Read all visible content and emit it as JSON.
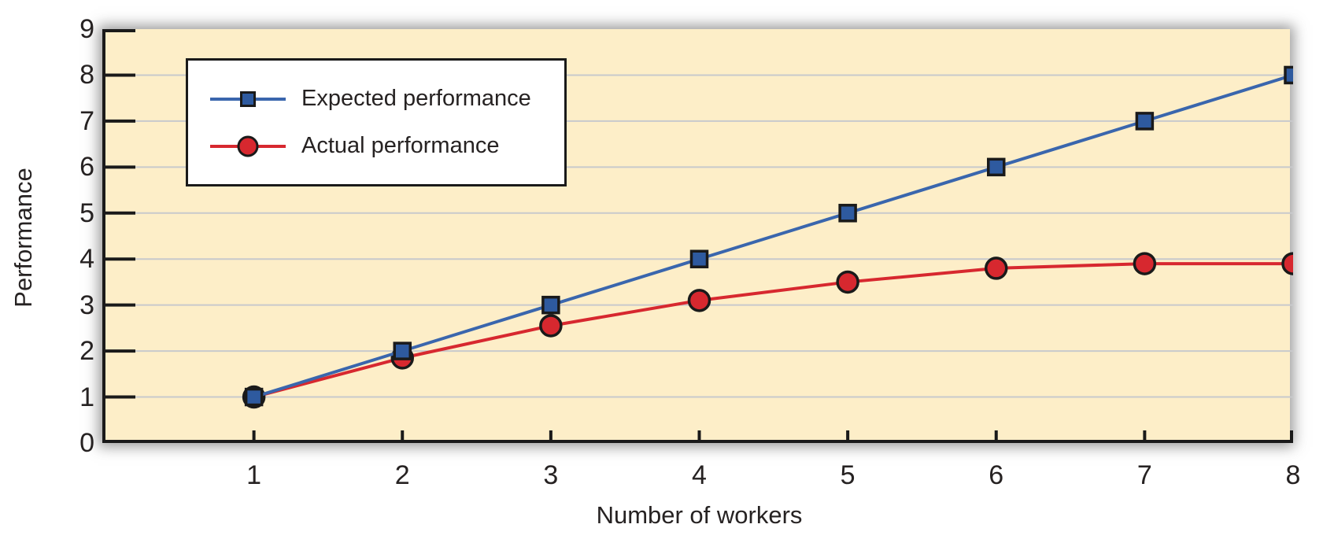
{
  "chart_data": {
    "type": "line",
    "title": "",
    "xlabel": "Number of workers",
    "ylabel": "Performance",
    "x": [
      1,
      2,
      3,
      4,
      5,
      6,
      7,
      8
    ],
    "xlim": [
      0,
      8
    ],
    "ylim": [
      0,
      9
    ],
    "xticks": [
      1,
      2,
      3,
      4,
      5,
      6,
      7,
      8
    ],
    "yticks": [
      0,
      1,
      2,
      3,
      4,
      5,
      6,
      7,
      8,
      9
    ],
    "grid": "horizontal-only",
    "legend_position": "top-left",
    "series": [
      {
        "name": "Expected performance",
        "line_color": "#3a66ad",
        "marker": "square",
        "marker_fill": "#2e5a9f",
        "marker_edge": "#1a1a1a",
        "values": [
          1,
          2,
          3,
          4,
          5,
          6,
          7,
          8
        ]
      },
      {
        "name": "Actual performance",
        "line_color": "#d7282f",
        "marker": "circle",
        "marker_fill": "#d7282f",
        "marker_edge": "#1a1a1a",
        "values": [
          1,
          1.85,
          2.55,
          3.1,
          3.5,
          3.8,
          3.9,
          3.9
        ]
      }
    ],
    "colors": {
      "plot_background": "#fdeec8",
      "gridline": "#c8c9cc",
      "axis": "#1a1a1a",
      "text": "#262222",
      "legend_background": "#ffffff",
      "legend_border": "#1a1a1a"
    }
  }
}
